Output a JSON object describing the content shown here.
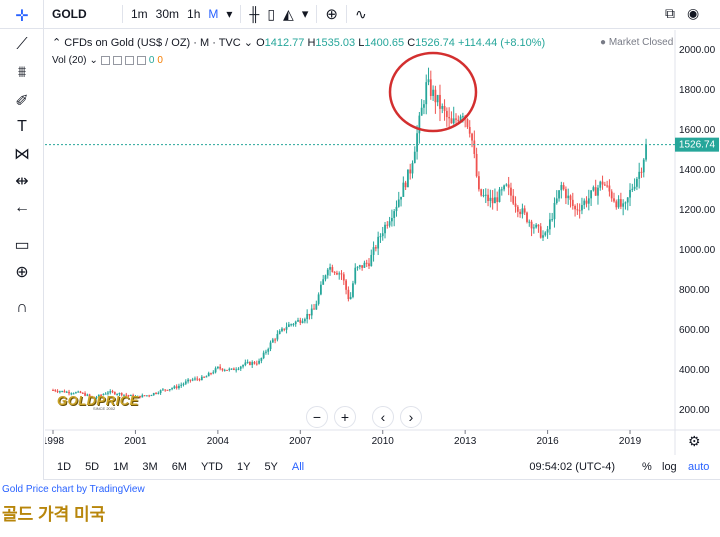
{
  "toolbar": {
    "symbol": "GOLD",
    "intervals": [
      "1m",
      "30m",
      "1h",
      "M"
    ],
    "active_interval": "M"
  },
  "legend": {
    "title": "CFDs on Gold (US$ / OZ) · M · TVC",
    "o_label": "O",
    "o": "1412.77",
    "h_label": "H",
    "h": "1535.03",
    "l_label": "L",
    "l": "1400.65",
    "c_label": "C",
    "c": "1526.74",
    "change": "+114.44 (+8.10%)"
  },
  "volume": {
    "label": "Vol (20)",
    "v1": "0",
    "v2": "0"
  },
  "market_status": "Market Closed",
  "price_tag": "1526.74",
  "timeframes": [
    "1D",
    "5D",
    "1M",
    "3M",
    "6M",
    "YTD",
    "1Y",
    "5Y",
    "All"
  ],
  "active_timeframe": "All",
  "clock": "09:54:02 (UTC-4)",
  "scale_buttons": {
    "percent": "%",
    "log": "log",
    "auto": "auto"
  },
  "credit": "Gold Price chart by TradingView",
  "caption": "골드 가격 미국",
  "logo": {
    "text": "GOLDPRICE",
    "sub": "SINCE 2002"
  },
  "colors": {
    "up": "#26a69a",
    "down": "#ef5350",
    "accent": "#2962ff",
    "highlight": "#d32f2f"
  },
  "chart_data": {
    "type": "candlestick",
    "title": "CFDs on Gold (US$ / OZ)",
    "x_ticks": [
      "1998",
      "2001",
      "2004",
      "2007",
      "2010",
      "2013",
      "2016",
      "2019"
    ],
    "y_ticks": [
      200,
      400,
      600,
      800,
      1000,
      1200,
      1400,
      1600,
      1800,
      2000
    ],
    "ylim": [
      100,
      2100
    ],
    "series": [
      {
        "values": [
          [
            1998.0,
            300
          ],
          [
            1998.5,
            290
          ],
          [
            1999.0,
            285
          ],
          [
            1999.5,
            260
          ],
          [
            2000.0,
            290
          ],
          [
            2000.5,
            280
          ],
          [
            2001.0,
            265
          ],
          [
            2001.5,
            275
          ],
          [
            2002.0,
            300
          ],
          [
            2002.5,
            315
          ],
          [
            2003.0,
            350
          ],
          [
            2003.5,
            360
          ],
          [
            2004.0,
            410
          ],
          [
            2004.5,
            400
          ],
          [
            2005.0,
            430
          ],
          [
            2005.5,
            440
          ],
          [
            2006.0,
            550
          ],
          [
            2006.5,
            620
          ],
          [
            2007.0,
            650
          ],
          [
            2007.5,
            700
          ],
          [
            2008.0,
            920
          ],
          [
            2008.5,
            880
          ],
          [
            2008.8,
            740
          ],
          [
            2009.0,
            900
          ],
          [
            2009.5,
            940
          ],
          [
            2010.0,
            1100
          ],
          [
            2010.5,
            1230
          ],
          [
            2011.0,
            1400
          ],
          [
            2011.6,
            1830
          ],
          [
            2012.0,
            1740
          ],
          [
            2012.5,
            1620
          ],
          [
            2012.9,
            1700
          ],
          [
            2013.2,
            1600
          ],
          [
            2013.5,
            1280
          ],
          [
            2014.0,
            1240
          ],
          [
            2014.5,
            1310
          ],
          [
            2015.0,
            1200
          ],
          [
            2015.5,
            1120
          ],
          [
            2015.9,
            1060
          ],
          [
            2016.5,
            1320
          ],
          [
            2017.0,
            1200
          ],
          [
            2017.5,
            1260
          ],
          [
            2018.0,
            1340
          ],
          [
            2018.5,
            1240
          ],
          [
            2018.8,
            1200
          ],
          [
            2019.0,
            1290
          ],
          [
            2019.4,
            1410
          ],
          [
            2019.6,
            1527
          ]
        ]
      }
    ]
  }
}
